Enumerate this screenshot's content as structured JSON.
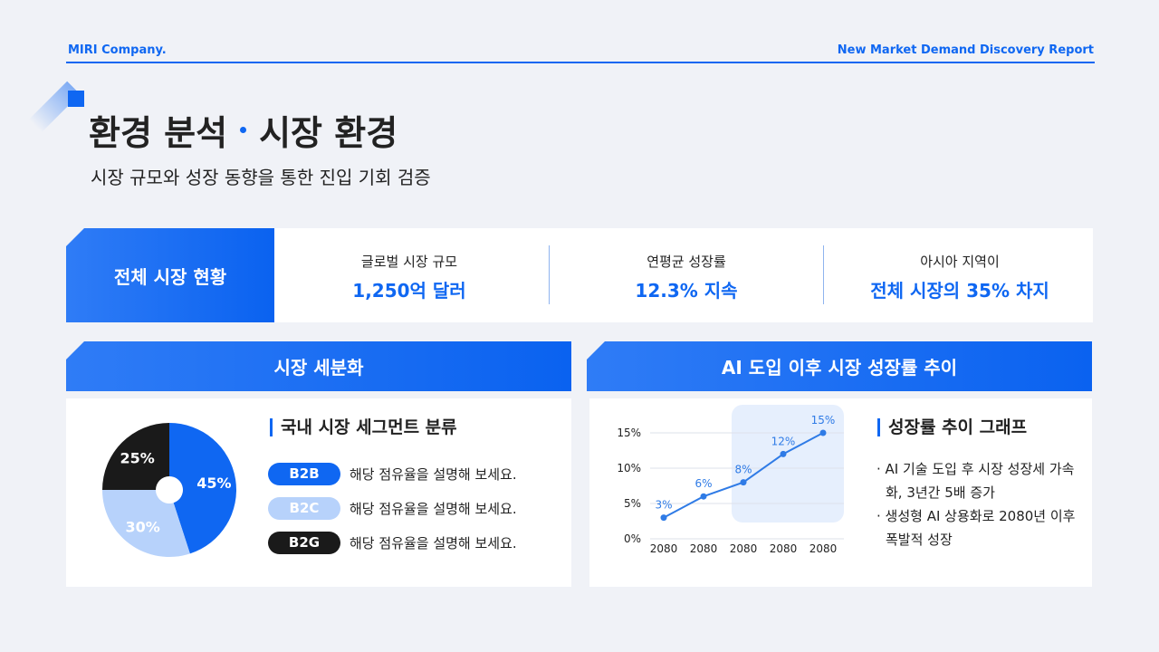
{
  "header": {
    "company": "MIRI Company.",
    "report": "New Market Demand Discovery Report"
  },
  "title": {
    "left": "환경 분석",
    "right": "시장 환경",
    "subtitle": "시장 규모와 성장 동향을 통한 진입 기회 검증"
  },
  "summary": {
    "label": "전체 시장 현황",
    "items": [
      {
        "label": "글로벌 시장 규모",
        "value": "1,250억 달러"
      },
      {
        "label": "연평균 성장률",
        "value": "12.3% 지속"
      },
      {
        "label": "아시아 지역이",
        "value": "전체 시장의 35% 차지"
      }
    ]
  },
  "segment": {
    "header": "시장 세분화",
    "heading": "국내 시장 세그먼트 분류",
    "chart": {
      "type": "pie",
      "categories": [
        "B2B",
        "B2C",
        "B2G"
      ],
      "values": [
        45,
        30,
        25
      ],
      "value_labels": [
        "45%",
        "30%",
        "25%"
      ],
      "colors": [
        "#0f67f2",
        "#b7d2fb",
        "#1a1a1a"
      ]
    },
    "descriptions": [
      "해당 점유율을 설명해 보세요.",
      "해당 점유율을 설명해 보세요.",
      "해당 점유율을 설명해 보세요."
    ]
  },
  "growth": {
    "header": "AI 도입 이후 시장 성장률 추이",
    "heading": "성장률 추이 그래프",
    "chart": {
      "type": "line",
      "categories": [
        "2080",
        "2080",
        "2080",
        "2080",
        "2080"
      ],
      "values": [
        3,
        6,
        8,
        12,
        15
      ],
      "value_labels": [
        "3%",
        "6%",
        "8%",
        "12%",
        "15%"
      ],
      "color": "#2f7be6",
      "ylim": [
        0,
        15
      ],
      "yticks": [
        {
          "value": 0,
          "label": "0%"
        },
        {
          "value": 5,
          "label": "5%"
        },
        {
          "value": 10,
          "label": "10%"
        },
        {
          "value": 15,
          "label": "15%"
        }
      ],
      "grid": true
    },
    "bullets": [
      "AI 기술 도입 후 시장 성장세 가속화, 3년간 5배 증가",
      "생성형 AI 상용화로 2080년 이후 폭발적 성장"
    ]
  }
}
